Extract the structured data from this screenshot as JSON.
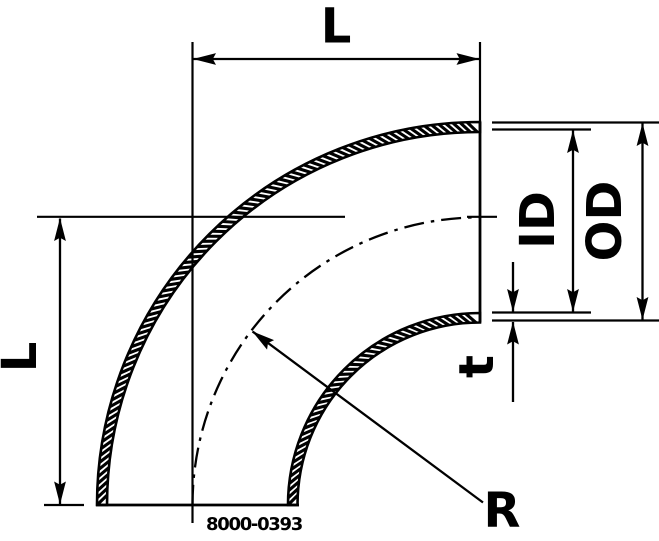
{
  "drawing": {
    "part_number": "8000-0393",
    "labels": {
      "length_top": "L",
      "length_left": "L",
      "inner_diameter": "ID",
      "outer_diameter": "OD",
      "wall_thickness": "t",
      "bend_radius": "R"
    },
    "colors": {
      "line": "#000000",
      "background": "#ffffff"
    }
  }
}
